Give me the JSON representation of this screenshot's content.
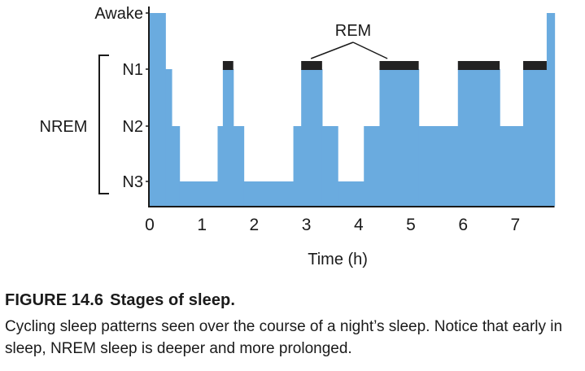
{
  "chart_data": {
    "type": "area",
    "title": "",
    "xlabel": "Time (h)",
    "ylabel": "",
    "xlim": [
      0,
      7.75
    ],
    "x_ticks": [
      "0",
      "1",
      "2",
      "3",
      "4",
      "5",
      "6",
      "7"
    ],
    "y_levels": [
      "Awake",
      "N1",
      "N2",
      "N3"
    ],
    "y_group": {
      "label": "NREM",
      "levels": [
        "N1",
        "N2",
        "N3"
      ]
    },
    "fill_color": "#6aabdf",
    "rem_color": "#222222",
    "annotation": "REM",
    "steps": [
      {
        "x0": 0.0,
        "x1": 0.3,
        "stage": "Awake"
      },
      {
        "x0": 0.3,
        "x1": 0.42,
        "stage": "N1"
      },
      {
        "x0": 0.42,
        "x1": 0.57,
        "stage": "N2"
      },
      {
        "x0": 0.57,
        "x1": 1.3,
        "stage": "N3"
      },
      {
        "x0": 1.3,
        "x1": 1.4,
        "stage": "N2"
      },
      {
        "x0": 1.4,
        "x1": 1.6,
        "stage": "N1",
        "rem": true
      },
      {
        "x0": 1.6,
        "x1": 1.8,
        "stage": "N2"
      },
      {
        "x0": 1.8,
        "x1": 2.75,
        "stage": "N3"
      },
      {
        "x0": 2.75,
        "x1": 2.9,
        "stage": "N2"
      },
      {
        "x0": 2.9,
        "x1": 3.3,
        "stage": "N1",
        "rem": true
      },
      {
        "x0": 3.3,
        "x1": 3.6,
        "stage": "N2"
      },
      {
        "x0": 3.6,
        "x1": 4.1,
        "stage": "N3"
      },
      {
        "x0": 4.1,
        "x1": 4.4,
        "stage": "N2"
      },
      {
        "x0": 4.4,
        "x1": 5.15,
        "stage": "N1",
        "rem": true
      },
      {
        "x0": 5.15,
        "x1": 5.9,
        "stage": "N2"
      },
      {
        "x0": 5.9,
        "x1": 6.7,
        "stage": "N1",
        "rem": true
      },
      {
        "x0": 6.7,
        "x1": 7.15,
        "stage": "N2"
      },
      {
        "x0": 7.15,
        "x1": 7.6,
        "stage": "N1",
        "rem": true
      },
      {
        "x0": 7.6,
        "x1": 7.75,
        "stage": "Awake"
      }
    ]
  },
  "caption": {
    "label": "FIGURE 14.6",
    "title": "Stages of sleep.",
    "body": "Cycling sleep patterns seen over the course of a night’s sleep. Notice that early in sleep, NREM sleep is deeper and more prolonged."
  }
}
